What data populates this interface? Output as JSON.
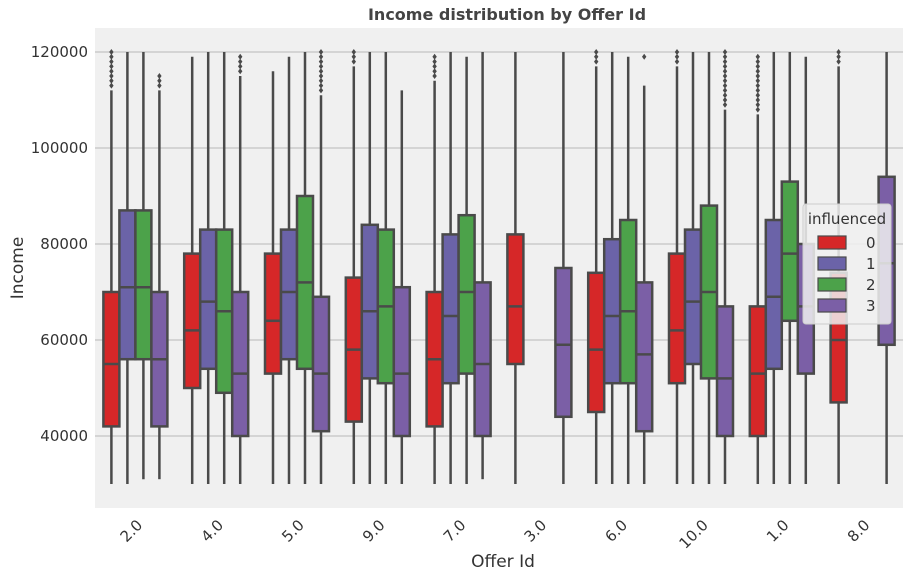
{
  "chart_data": {
    "type": "box",
    "title": "Income distribution by Offer Id",
    "xlabel": "Offer Id",
    "ylabel": "Income",
    "ylim": [
      25000,
      125000
    ],
    "yticks": [
      40000,
      60000,
      80000,
      100000,
      120000
    ],
    "grid": "horizontal",
    "legend": {
      "title": "influenced",
      "placement": "center-right"
    },
    "categories": [
      "2.0",
      "4.0",
      "5.0",
      "9.0",
      "7.0",
      "3.0",
      "6.0",
      "10.0",
      "1.0",
      "8.0"
    ],
    "series": [
      {
        "name": "0",
        "color": "#d62728",
        "boxes": [
          {
            "whislo": 30000,
            "q1": 42000,
            "med": 55000,
            "q3": 70000,
            "whishi": 112000,
            "fliers": [
              113000,
              114000,
              115000,
              116000,
              117000,
              118000,
              119000,
              120000
            ]
          },
          {
            "whislo": 30000,
            "q1": 50000,
            "med": 62000,
            "q3": 78000,
            "whishi": 119000,
            "fliers": []
          },
          {
            "whislo": 30000,
            "q1": 53000,
            "med": 64000,
            "q3": 78000,
            "whishi": 116000,
            "fliers": []
          },
          {
            "whislo": 30000,
            "q1": 43000,
            "med": 58000,
            "q3": 73000,
            "whishi": 117000,
            "fliers": [
              118000,
              119000,
              120000
            ]
          },
          {
            "whislo": 30000,
            "q1": 42000,
            "med": 56000,
            "q3": 70000,
            "whishi": 114000,
            "fliers": [
              115000,
              116000,
              117000,
              118000,
              119000
            ]
          },
          {
            "whislo": 30000,
            "q1": 55000,
            "med": 67000,
            "q3": 82000,
            "whishi": 120000,
            "fliers": []
          },
          {
            "whislo": 30000,
            "q1": 45000,
            "med": 58000,
            "q3": 74000,
            "whishi": 117000,
            "fliers": [
              118000,
              119000,
              120000
            ]
          },
          {
            "whislo": 30000,
            "q1": 51000,
            "med": 62000,
            "q3": 78000,
            "whishi": 117000,
            "fliers": [
              118000,
              119000,
              120000
            ]
          },
          {
            "whislo": 30000,
            "q1": 40000,
            "med": 53000,
            "q3": 67000,
            "whishi": 107000,
            "fliers": [
              108000,
              109000,
              110000,
              111000,
              112000,
              113000,
              114000,
              115000,
              116000,
              117000,
              118000,
              119000
            ]
          },
          {
            "whislo": 30000,
            "q1": 47000,
            "med": 60000,
            "q3": 74000,
            "whishi": 117000,
            "fliers": [
              118000,
              119000,
              120000
            ]
          }
        ]
      },
      {
        "name": "1",
        "color": "#6b63a8",
        "boxes": [
          {
            "whislo": 30000,
            "q1": 56000,
            "med": 71000,
            "q3": 87000,
            "whishi": 120000,
            "fliers": []
          },
          {
            "whislo": 30000,
            "q1": 54000,
            "med": 68000,
            "q3": 83000,
            "whishi": 120000,
            "fliers": []
          },
          {
            "whislo": 30000,
            "q1": 56000,
            "med": 70000,
            "q3": 83000,
            "whishi": 119000,
            "fliers": []
          },
          {
            "whislo": 30000,
            "q1": 52000,
            "med": 66000,
            "q3": 84000,
            "whishi": 120000,
            "fliers": []
          },
          {
            "whislo": 30000,
            "q1": 51000,
            "med": 65000,
            "q3": 82000,
            "whishi": 120000,
            "fliers": []
          },
          null,
          {
            "whislo": 30000,
            "q1": 51000,
            "med": 65000,
            "q3": 81000,
            "whishi": 120000,
            "fliers": []
          },
          {
            "whislo": 30000,
            "q1": 55000,
            "med": 68000,
            "q3": 83000,
            "whishi": 120000,
            "fliers": []
          },
          {
            "whislo": 30000,
            "q1": 54000,
            "med": 69000,
            "q3": 85000,
            "whishi": 120000,
            "fliers": []
          },
          null
        ]
      },
      {
        "name": "2",
        "color": "#4ca24a",
        "boxes": [
          {
            "whislo": 31000,
            "q1": 56000,
            "med": 71000,
            "q3": 87000,
            "whishi": 120000,
            "fliers": []
          },
          {
            "whislo": 30000,
            "q1": 49000,
            "med": 66000,
            "q3": 83000,
            "whishi": 120000,
            "fliers": []
          },
          {
            "whislo": 30000,
            "q1": 54000,
            "med": 72000,
            "q3": 90000,
            "whishi": 120000,
            "fliers": []
          },
          {
            "whislo": 30000,
            "q1": 51000,
            "med": 67000,
            "q3": 83000,
            "whishi": 120000,
            "fliers": []
          },
          {
            "whislo": 30000,
            "q1": 53000,
            "med": 70000,
            "q3": 86000,
            "whishi": 119000,
            "fliers": []
          },
          null,
          {
            "whislo": 30000,
            "q1": 51000,
            "med": 66000,
            "q3": 85000,
            "whishi": 119000,
            "fliers": []
          },
          {
            "whislo": 30000,
            "q1": 52000,
            "med": 70000,
            "q3": 88000,
            "whishi": 120000,
            "fliers": []
          },
          {
            "whislo": 30000,
            "q1": 64000,
            "med": 78000,
            "q3": 93000,
            "whishi": 120000,
            "fliers": []
          },
          null
        ]
      },
      {
        "name": "3",
        "color": "#7b5fa6",
        "boxes": [
          {
            "whislo": 31000,
            "q1": 42000,
            "med": 56000,
            "q3": 70000,
            "whishi": 112000,
            "fliers": [
              113000,
              114000,
              115000
            ]
          },
          {
            "whislo": 30000,
            "q1": 40000,
            "med": 53000,
            "q3": 70000,
            "whishi": 115000,
            "fliers": [
              116000,
              117000,
              118000,
              119000
            ]
          },
          {
            "whislo": 30000,
            "q1": 41000,
            "med": 53000,
            "q3": 69000,
            "whishi": 111000,
            "fliers": [
              112000,
              113000,
              114000,
              115000,
              116000,
              117000,
              118000,
              119000,
              120000
            ]
          },
          {
            "whislo": 30000,
            "q1": 40000,
            "med": 53000,
            "q3": 71000,
            "whishi": 112000,
            "fliers": []
          },
          {
            "whislo": 31000,
            "q1": 40000,
            "med": 55000,
            "q3": 72000,
            "whishi": 120000,
            "fliers": []
          },
          {
            "whislo": 30000,
            "q1": 44000,
            "med": 59000,
            "q3": 75000,
            "whishi": 120000,
            "fliers": []
          },
          {
            "whislo": 30000,
            "q1": 41000,
            "med": 57000,
            "q3": 72000,
            "whishi": 113000,
            "fliers": [
              119000
            ]
          },
          {
            "whislo": 30000,
            "q1": 40000,
            "med": 52000,
            "q3": 67000,
            "whishi": 108000,
            "fliers": [
              109000,
              110000,
              111000,
              112000,
              113000,
              114000,
              115000,
              116000,
              117000,
              118000,
              119000,
              120000
            ]
          },
          {
            "whislo": 30000,
            "q1": 53000,
            "med": 67000,
            "q3": 80000,
            "whishi": 119000,
            "fliers": []
          },
          {
            "whislo": 30000,
            "q1": 59000,
            "med": 76000,
            "q3": 94000,
            "whishi": 120000,
            "fliers": []
          }
        ]
      }
    ]
  }
}
